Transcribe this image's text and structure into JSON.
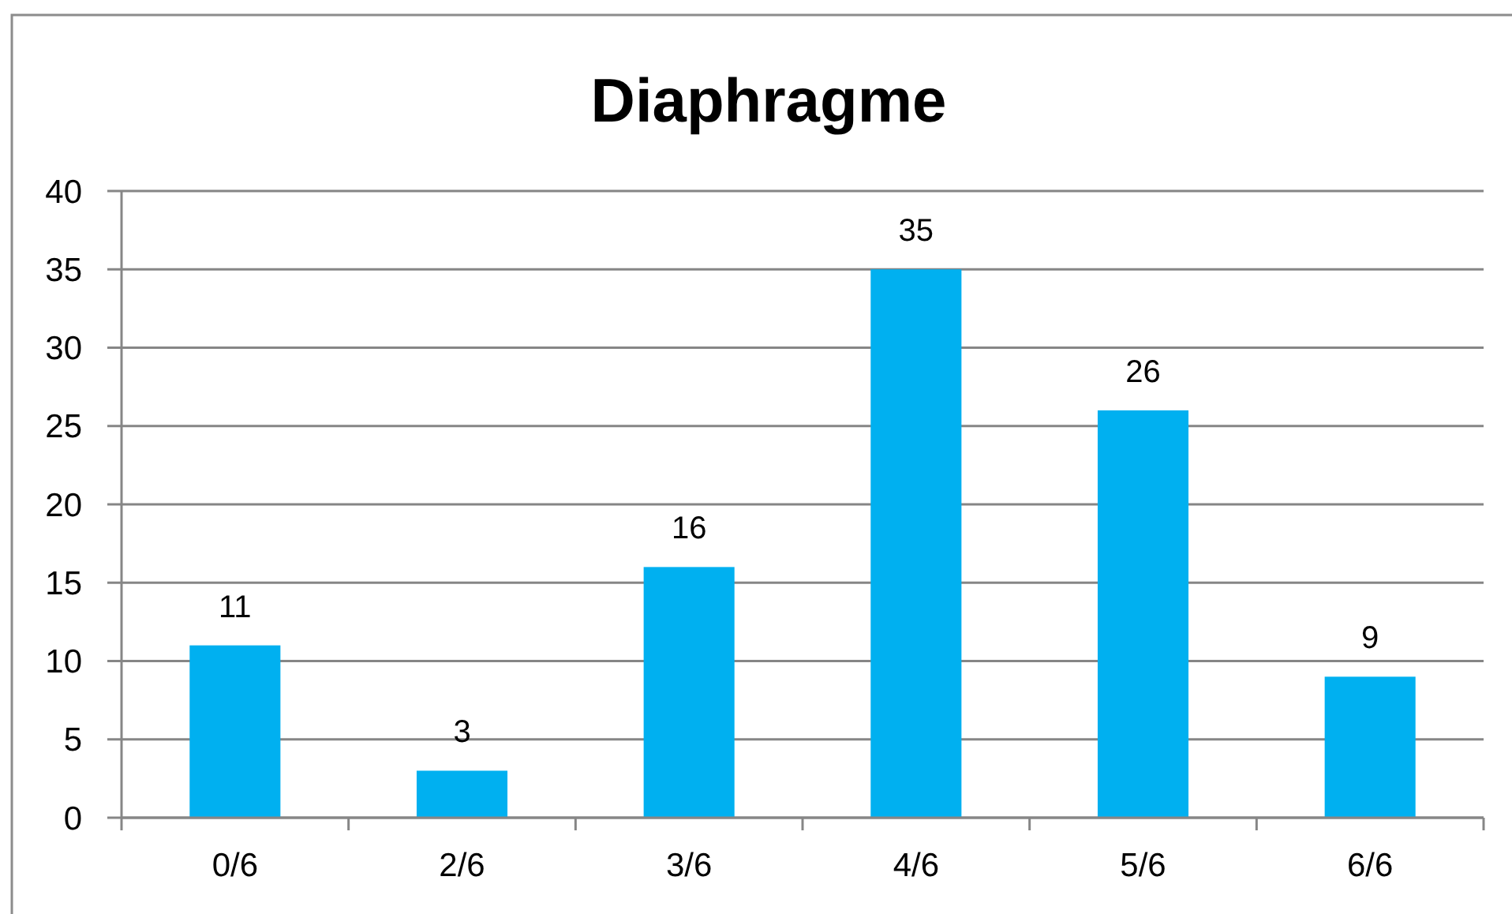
{
  "chart_data": {
    "type": "bar",
    "title": "Diaphragme",
    "categories": [
      "0/6",
      "2/6",
      "3/6",
      "4/6",
      "5/6",
      "6/6"
    ],
    "values": [
      11,
      3,
      16,
      35,
      26,
      9
    ],
    "color": "#00b0f0",
    "ylim": [
      0,
      40
    ],
    "yticks": [
      0,
      5,
      10,
      15,
      20,
      25,
      30,
      35,
      40
    ],
    "grid": "y",
    "data_labels": true
  }
}
